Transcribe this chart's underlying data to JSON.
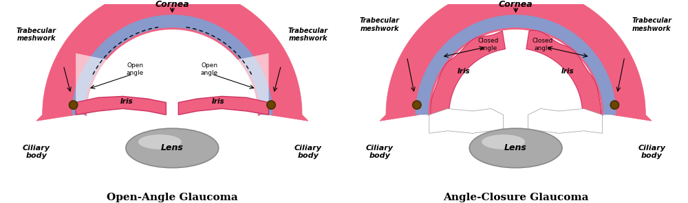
{
  "bg_color": "#ffffff",
  "pink_color": "#F06080",
  "cornea_outer_color": "#F06080",
  "cornea_inner_color": "#8899CC",
  "lens_color": "#AAAAAA",
  "lens_highlight": "#DDDDDD",
  "iris_color": "#F06080",
  "white_color": "#FFFFFF",
  "dark_brown": "#4A3000",
  "title1": "Open-Angle Glaucoma",
  "title2": "Angle-Closure Glaucoma",
  "label_cornea": "Cornea",
  "label_trabecular": "Trabecular\nmeshwork",
  "label_ciliary": "Ciliary\nbody",
  "label_iris": "Iris",
  "label_lens": "Lens",
  "label_open_angle": "Open\nangle",
  "label_closed_angle": "Closed\nangle"
}
